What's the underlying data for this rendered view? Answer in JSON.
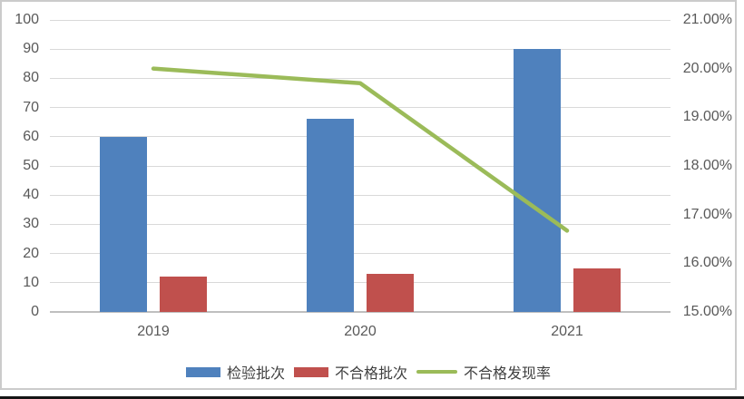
{
  "chart_data": {
    "type": "combo",
    "title": "",
    "categories": [
      "2019",
      "2020",
      "2021"
    ],
    "series": [
      {
        "name": "检验批次",
        "kind": "bar",
        "axis": "left",
        "color": "#4F81BD",
        "values": [
          60,
          66,
          90
        ]
      },
      {
        "name": "不合格批次",
        "kind": "bar",
        "axis": "left",
        "color": "#C0504D",
        "values": [
          12,
          13,
          15
        ]
      },
      {
        "name": "不合格发现率",
        "kind": "line",
        "axis": "right",
        "color": "#9BBB59",
        "values": [
          20.0,
          19.7,
          16.67
        ],
        "values_display": [
          "20.00%",
          "19.70%",
          "16.67%"
        ]
      }
    ],
    "left_axis": {
      "min": 0,
      "max": 100,
      "step": 10,
      "tick_labels": [
        "100",
        "90",
        "80",
        "70",
        "60",
        "50",
        "40",
        "30",
        "20",
        "10",
        "0"
      ]
    },
    "right_axis": {
      "min": 15,
      "max": 21,
      "step": 1,
      "tick_labels": [
        "21.00%",
        "20.00%",
        "19.00%",
        "18.00%",
        "17.00%",
        "16.00%",
        "15.00%"
      ]
    },
    "grid": true,
    "legend_position": "bottom",
    "colors": {
      "gridline": "#D9D9D9",
      "axis_line": "#BFBFBF",
      "tick_text": "#595959",
      "frame_border": "#CBCBCB",
      "bar_blue": "#4F81BD",
      "bar_red": "#C0504D",
      "line_green": "#9BBB59"
    }
  }
}
